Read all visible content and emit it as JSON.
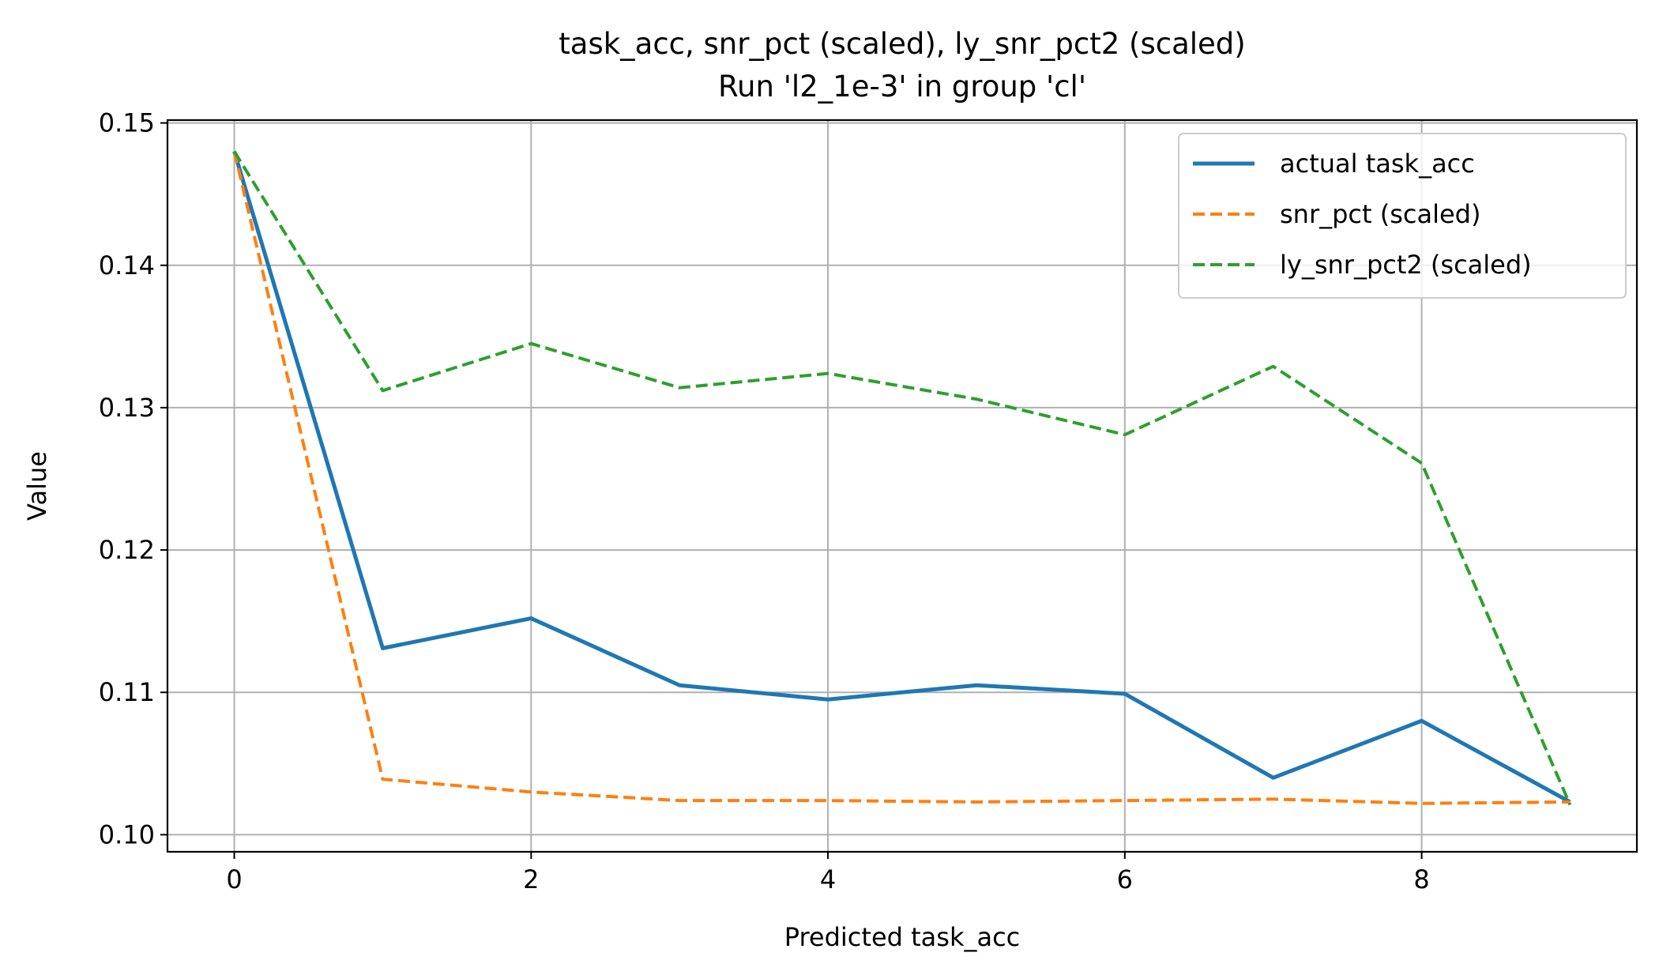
{
  "chart_data": {
    "type": "line",
    "title": "task_acc, snr_pct (scaled), ly_snr_pct2 (scaled)",
    "subtitle": "Run 'l2_1e-3' in group 'cl'",
    "xlabel": "Predicted task_acc",
    "ylabel": "Value",
    "xlim": [
      -0.45,
      9.45
    ],
    "ylim": [
      0.0988,
      0.1502
    ],
    "xticks": [
      0,
      2,
      4,
      6,
      8
    ],
    "yticks": [
      0.1,
      0.11,
      0.12,
      0.13,
      0.14,
      0.15
    ],
    "xtick_labels": [
      "0",
      "2",
      "4",
      "6",
      "8"
    ],
    "ytick_labels": [
      "0.10",
      "0.11",
      "0.12",
      "0.13",
      "0.14",
      "0.15"
    ],
    "grid": true,
    "legend_position": "top-right",
    "x": [
      0,
      1,
      2,
      3,
      4,
      5,
      6,
      7,
      8,
      9
    ],
    "series": [
      {
        "name": "actual task_acc",
        "color": "#1f77b4",
        "style": "solid",
        "values": [
          0.148,
          0.1131,
          0.1152,
          0.1105,
          0.1095,
          0.1105,
          0.1099,
          0.104,
          0.108,
          0.1023
        ]
      },
      {
        "name": "snr_pct (scaled)",
        "color": "#ff7f0e",
        "style": "dashed",
        "values": [
          0.148,
          0.1039,
          0.103,
          0.1024,
          0.1024,
          0.1023,
          0.1024,
          0.1025,
          0.1022,
          0.1023
        ]
      },
      {
        "name": "ly_snr_pct2 (scaled)",
        "color": "#2ca02c",
        "style": "dashed",
        "values": [
          0.148,
          0.1312,
          0.1345,
          0.1314,
          0.1324,
          0.1306,
          0.1281,
          0.1329,
          0.1261,
          0.1021
        ]
      }
    ]
  }
}
